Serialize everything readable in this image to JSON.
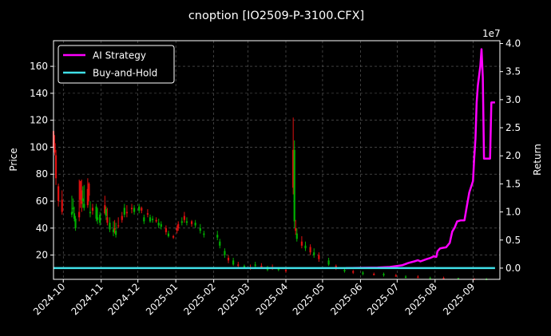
{
  "chart_data": {
    "type": "line",
    "title": "cnoption [IO2509-P-3100.CFX]",
    "ylabel": "Price",
    "y2label": "Return",
    "y2_multiplier_label": "1e7",
    "ylim": [
      2,
      179
    ],
    "y2lim": [
      -0.2,
      4.05
    ],
    "xlim": [
      "2024-09-23",
      "2025-09-23"
    ],
    "grid": true,
    "legend_position": "top-left",
    "x_ticks": [
      "2024-10",
      "2024-11",
      "2024-12",
      "2025-01",
      "2025-02",
      "2025-03",
      "2025-04",
      "2025-05",
      "2025-06",
      "2025-07",
      "2025-08",
      "2025-09"
    ],
    "y_ticks": [
      "20",
      "40",
      "60",
      "80",
      "100",
      "120",
      "140",
      "160"
    ],
    "y2_ticks": [
      "0.0",
      "0.5",
      "1.0",
      "1.5",
      "2.0",
      "2.5",
      "3.0",
      "3.5",
      "4.0"
    ],
    "series": [
      {
        "name": "AI Strategy",
        "axis": "right",
        "color": "#ff00ff",
        "points": [
          [
            "2025-05-20",
            0.0
          ],
          [
            "2025-06-15",
            0.01
          ],
          [
            "2025-06-25",
            0.02
          ],
          [
            "2025-07-05",
            0.05
          ],
          [
            "2025-07-10",
            0.09
          ],
          [
            "2025-07-15",
            0.12
          ],
          [
            "2025-07-18",
            0.14
          ],
          [
            "2025-07-20",
            0.12
          ],
          [
            "2025-07-25",
            0.16
          ],
          [
            "2025-07-28",
            0.18
          ],
          [
            "2025-07-31",
            0.21
          ],
          [
            "2025-08-02",
            0.2
          ],
          [
            "2025-08-03",
            0.3
          ],
          [
            "2025-08-05",
            0.35
          ],
          [
            "2025-08-07",
            0.36
          ],
          [
            "2025-08-10",
            0.37
          ],
          [
            "2025-08-13",
            0.45
          ],
          [
            "2025-08-15",
            0.65
          ],
          [
            "2025-08-17",
            0.72
          ],
          [
            "2025-08-19",
            0.83
          ],
          [
            "2025-08-22",
            0.85
          ],
          [
            "2025-08-25",
            0.85
          ],
          [
            "2025-08-27",
            1.1
          ],
          [
            "2025-08-29",
            1.35
          ],
          [
            "2025-09-01",
            1.55
          ],
          [
            "2025-09-02",
            1.95
          ],
          [
            "2025-09-03",
            2.3
          ],
          [
            "2025-09-04",
            2.95
          ],
          [
            "2025-09-05",
            3.25
          ],
          [
            "2025-09-07",
            3.6
          ],
          [
            "2025-09-08",
            3.9
          ],
          [
            "2025-09-09",
            3.4
          ],
          [
            "2025-09-10",
            1.95
          ],
          [
            "2025-09-15",
            1.95
          ],
          [
            "2025-09-16",
            2.95
          ],
          [
            "2025-09-19",
            2.95
          ]
        ]
      },
      {
        "name": "Buy-and-Hold",
        "axis": "right",
        "color": "#40e0e8",
        "points": [
          [
            "2024-09-23",
            0.0
          ],
          [
            "2025-09-19",
            0.0
          ]
        ]
      }
    ],
    "candles": [
      [
        "2024-09-23",
        112,
        118,
        100,
        95,
        "down"
      ],
      [
        "2024-09-24",
        103,
        109,
        96,
        94,
        "down"
      ],
      [
        "2024-09-25",
        94,
        98,
        77,
        72,
        "down"
      ],
      [
        "2024-09-27",
        71,
        73,
        60,
        56,
        "down"
      ],
      [
        "2024-09-30",
        61,
        68,
        52,
        50,
        "down"
      ],
      [
        "2024-10-08",
        52,
        64,
        50,
        48,
        "up"
      ],
      [
        "2024-10-09",
        55,
        62,
        54,
        51,
        "up"
      ],
      [
        "2024-10-10",
        51,
        56,
        47,
        45,
        "up"
      ],
      [
        "2024-10-11",
        47,
        49,
        40,
        38,
        "up"
      ],
      [
        "2024-10-14",
        48,
        76,
        52,
        45,
        "down"
      ],
      [
        "2024-10-15",
        61,
        72,
        75,
        55,
        "down"
      ],
      [
        "2024-10-16",
        68,
        76,
        58,
        52,
        "down"
      ],
      [
        "2024-10-17",
        62,
        71,
        60,
        55,
        "up"
      ],
      [
        "2024-10-18",
        58,
        72,
        55,
        53,
        "up"
      ],
      [
        "2024-10-21",
        57,
        77,
        69,
        55,
        "down"
      ],
      [
        "2024-10-22",
        64,
        74,
        73,
        60,
        "down"
      ],
      [
        "2024-10-23",
        52,
        60,
        51,
        48,
        "up"
      ],
      [
        "2024-10-25",
        53,
        58,
        55,
        50,
        "down"
      ],
      [
        "2024-10-28",
        56,
        58,
        47,
        45,
        "up"
      ],
      [
        "2024-10-29",
        48,
        55,
        46,
        43,
        "up"
      ],
      [
        "2024-10-31",
        50,
        52,
        44,
        42,
        "up"
      ],
      [
        "2024-11-04",
        51,
        64,
        57,
        50,
        "down"
      ],
      [
        "2024-11-05",
        54,
        56,
        49,
        46,
        "up"
      ],
      [
        "2024-11-06",
        48,
        55,
        44,
        42,
        "down"
      ],
      [
        "2024-11-08",
        44,
        48,
        39,
        37,
        "up"
      ],
      [
        "2024-11-11",
        39,
        45,
        37,
        34,
        "up"
      ],
      [
        "2024-11-12",
        39,
        46,
        40,
        36,
        "down"
      ],
      [
        "2024-11-13",
        38,
        44,
        35,
        33,
        "up"
      ],
      [
        "2024-11-15",
        42,
        48,
        42,
        40,
        "down"
      ],
      [
        "2024-11-18",
        46,
        52,
        49,
        44,
        "down"
      ],
      [
        "2024-11-20",
        50,
        58,
        55,
        48,
        "up"
      ],
      [
        "2024-11-22",
        51,
        57,
        52,
        48,
        "down"
      ],
      [
        "2024-11-26",
        54,
        58,
        55,
        51,
        "down"
      ],
      [
        "2024-11-28",
        55,
        57,
        52,
        50,
        "up"
      ],
      [
        "2024-12-02",
        56,
        58,
        53,
        51,
        "up"
      ],
      [
        "2024-12-04",
        53,
        56,
        55,
        51,
        "down"
      ],
      [
        "2024-12-06",
        48,
        50,
        45,
        43,
        "up"
      ],
      [
        "2024-12-09",
        50,
        54,
        51,
        48,
        "down"
      ],
      [
        "2024-12-11",
        48,
        50,
        45,
        44,
        "up"
      ],
      [
        "2024-12-13",
        47,
        49,
        46,
        44,
        "up"
      ],
      [
        "2024-12-16",
        45,
        48,
        46,
        44,
        "down"
      ],
      [
        "2024-12-18",
        44,
        47,
        42,
        40,
        "up"
      ],
      [
        "2024-12-20",
        43,
        45,
        41,
        39,
        "up"
      ],
      [
        "2024-12-24",
        40,
        42,
        37,
        35,
        "down"
      ],
      [
        "2024-12-26",
        36,
        38,
        34,
        33,
        "up"
      ],
      [
        "2024-12-30",
        33,
        35,
        34,
        32,
        "down"
      ],
      [
        "2025-01-02",
        38,
        42,
        40,
        36,
        "down"
      ],
      [
        "2025-01-03",
        40,
        45,
        43,
        38,
        "down"
      ],
      [
        "2025-01-06",
        44,
        48,
        45,
        42,
        "up"
      ],
      [
        "2025-01-08",
        46,
        52,
        49,
        44,
        "down"
      ],
      [
        "2025-01-10",
        45,
        48,
        44,
        42,
        "up"
      ],
      [
        "2025-01-14",
        43,
        46,
        45,
        41,
        "down"
      ],
      [
        "2025-01-17",
        44,
        46,
        42,
        40,
        "up"
      ],
      [
        "2025-01-21",
        40,
        43,
        38,
        36,
        "up"
      ],
      [
        "2025-01-24",
        36,
        38,
        35,
        33,
        "up"
      ],
      [
        "2025-02-04",
        35,
        38,
        33,
        31,
        "up"
      ],
      [
        "2025-02-06",
        30,
        32,
        27,
        25,
        "up"
      ],
      [
        "2025-02-10",
        23,
        25,
        20,
        18,
        "up"
      ],
      [
        "2025-02-13",
        18,
        20,
        16,
        14,
        "down"
      ],
      [
        "2025-02-17",
        16,
        18,
        13,
        12,
        "up"
      ],
      [
        "2025-02-21",
        13,
        15,
        12,
        11,
        "down"
      ],
      [
        "2025-02-26",
        12,
        13,
        11,
        10,
        "up"
      ],
      [
        "2025-03-03",
        11,
        13,
        10,
        9,
        "down"
      ],
      [
        "2025-03-07",
        13,
        15,
        12,
        11,
        "up"
      ],
      [
        "2025-03-12",
        12,
        14,
        11,
        10,
        "down"
      ],
      [
        "2025-03-17",
        10,
        12,
        9,
        8,
        "up"
      ],
      [
        "2025-03-21",
        11,
        13,
        10,
        9,
        "down"
      ],
      [
        "2025-03-26",
        10,
        11,
        9,
        8,
        "up"
      ],
      [
        "2025-04-01",
        9,
        10,
        8,
        7,
        "down"
      ],
      [
        "2025-04-07",
        70,
        122,
        98,
        65,
        "down"
      ],
      [
        "2025-04-08",
        98,
        105,
        45,
        40,
        "up"
      ],
      [
        "2025-04-09",
        40,
        46,
        38,
        35,
        "down"
      ],
      [
        "2025-04-10",
        36,
        40,
        32,
        30,
        "up"
      ],
      [
        "2025-04-14",
        30,
        34,
        27,
        25,
        "down"
      ],
      [
        "2025-04-17",
        27,
        30,
        25,
        23,
        "up"
      ],
      [
        "2025-04-21",
        26,
        28,
        22,
        20,
        "down"
      ],
      [
        "2025-04-24",
        22,
        25,
        20,
        18,
        "up"
      ],
      [
        "2025-04-28",
        20,
        22,
        17,
        15,
        "down"
      ],
      [
        "2025-05-06",
        16,
        18,
        13,
        12,
        "up"
      ],
      [
        "2025-05-12",
        12,
        13,
        10,
        9,
        "down"
      ],
      [
        "2025-05-19",
        9,
        10,
        8,
        7,
        "up"
      ],
      [
        "2025-05-26",
        8,
        9,
        7,
        6,
        "down"
      ],
      [
        "2025-06-03",
        7,
        8,
        6,
        5,
        "up"
      ],
      [
        "2025-06-12",
        6,
        7,
        5,
        5,
        "down"
      ],
      [
        "2025-06-20",
        6,
        7,
        5,
        4,
        "up"
      ],
      [
        "2025-06-30",
        5,
        6,
        4,
        4,
        "down"
      ],
      [
        "2025-07-08",
        4,
        5,
        3,
        3,
        "up"
      ],
      [
        "2025-07-18",
        4,
        5,
        3,
        3,
        "down"
      ],
      [
        "2025-07-28",
        3,
        4,
        3,
        2,
        "up"
      ],
      [
        "2025-08-08",
        3,
        4,
        2,
        2,
        "down"
      ],
      [
        "2025-08-20",
        3,
        3,
        2,
        2,
        "up"
      ],
      [
        "2025-09-02",
        2,
        3,
        2,
        2,
        "down"
      ],
      [
        "2025-09-12",
        2,
        3,
        2,
        2,
        "up"
      ]
    ],
    "candle_colors": {
      "up": "#00b000",
      "down": "#e01010"
    }
  }
}
